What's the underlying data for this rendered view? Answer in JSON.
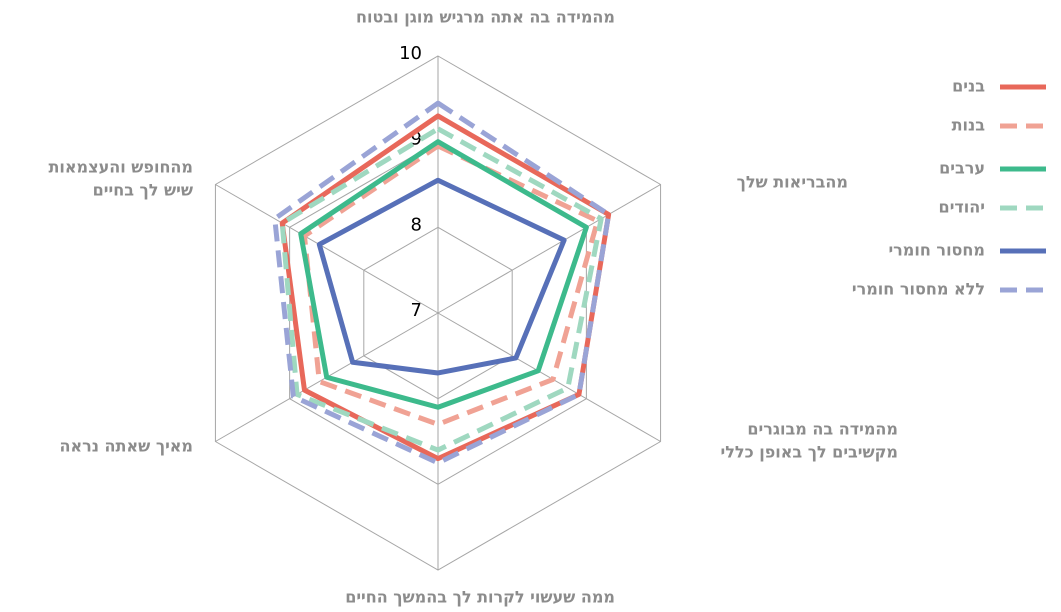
{
  "chart_data": {
    "type": "radar",
    "categories": [
      [
        "מהמידה בה אתה מרגיש מוגן ובטוח"
      ],
      [
        "מהבריאות שלך"
      ],
      [
        "מהמידה בה מבוגרים",
        "מקשיבים לך באופן כללי"
      ],
      [
        "ממה שעשוי לקרות לך בהמשך החיים"
      ],
      [
        "מאיך שאתה נראה"
      ],
      [
        "מהחופש והעצמאות",
        "שיש לך בחיים"
      ]
    ],
    "rlim": [
      7,
      10
    ],
    "rticks": [
      7,
      8,
      9,
      10
    ],
    "grid": true,
    "legend": "right",
    "series": [
      {
        "name": "בנים",
        "color": "#e8685a",
        "dashed": false,
        "values": [
          9.3,
          9.3,
          8.9,
          8.7,
          8.8,
          9.1
        ]
      },
      {
        "name": "בנות",
        "color": "#f0a294",
        "dashed": true,
        "values": [
          8.95,
          9.15,
          8.55,
          8.3,
          8.6,
          8.8
        ]
      },
      {
        "name": "ערבים",
        "color": "#3dba8c",
        "dashed": false,
        "values": [
          9.0,
          9.0,
          8.35,
          8.1,
          8.5,
          8.85
        ]
      },
      {
        "name": "יהודים",
        "color": "#9fd8c0",
        "dashed": true,
        "values": [
          9.15,
          9.2,
          8.75,
          8.6,
          8.9,
          9.1
        ]
      },
      {
        "name": "מחסור חומרי",
        "color": "#5770b8",
        "dashed": false,
        "values": [
          8.55,
          8.7,
          8.05,
          7.7,
          8.15,
          8.6
        ]
      },
      {
        "name": "ללא מחסור חומרי",
        "color": "#9aa4d6",
        "dashed": true,
        "values": [
          9.45,
          9.3,
          8.9,
          8.75,
          8.95,
          9.2
        ]
      }
    ]
  }
}
